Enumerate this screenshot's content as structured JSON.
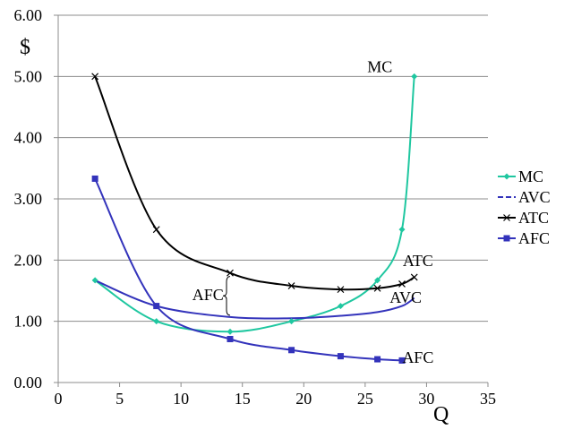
{
  "chart_data": {
    "type": "line",
    "title": "",
    "xlabel": "Q",
    "ylabel": "$",
    "xlim": [
      0,
      35
    ],
    "ylim": [
      0,
      6
    ],
    "xticks": [
      0,
      5,
      10,
      15,
      20,
      25,
      30,
      35
    ],
    "yticks": [
      0,
      1,
      2,
      3,
      4,
      5,
      6
    ],
    "xtick_labels": [
      "0",
      "5",
      "10",
      "15",
      "20",
      "25",
      "30",
      "35"
    ],
    "ytick_labels": [
      "0.00",
      "1.00",
      "2.00",
      "3.00",
      "4.00",
      "5.00",
      "6.00"
    ],
    "grid": "horizontal",
    "legend_position": "right",
    "series": [
      {
        "name": "MC",
        "color": "#1fc7a0",
        "marker": "diamond",
        "x": [
          3,
          8,
          14,
          19,
          23,
          26,
          28,
          29
        ],
        "y": [
          1.67,
          1.0,
          0.83,
          1.0,
          1.25,
          1.67,
          2.5,
          5.0
        ]
      },
      {
        "name": "AVC",
        "color": "#3333bb",
        "marker": "none",
        "x": [
          3,
          8,
          14,
          19,
          23,
          26,
          28,
          29
        ],
        "y": [
          1.67,
          1.25,
          1.07,
          1.05,
          1.09,
          1.15,
          1.25,
          1.38
        ]
      },
      {
        "name": "ATC",
        "color": "#000000",
        "marker": "x",
        "x": [
          3,
          8,
          14,
          19,
          23,
          26,
          28,
          29
        ],
        "y": [
          5.0,
          2.5,
          1.79,
          1.58,
          1.52,
          1.54,
          1.61,
          1.72
        ]
      },
      {
        "name": "AFC",
        "color": "#3333bb",
        "marker": "square",
        "x": [
          3,
          8,
          14,
          19,
          23,
          26,
          28
        ],
        "y": [
          3.33,
          1.25,
          0.71,
          0.53,
          0.43,
          0.38,
          0.36
        ]
      }
    ],
    "annotations": [
      {
        "text": "MC",
        "x": 26.2,
        "y": 5.07
      },
      {
        "text": "ATC",
        "x": 29.3,
        "y": 1.9
      },
      {
        "text": "AVC",
        "x": 28.3,
        "y": 1.3
      },
      {
        "text": "AFC",
        "x": 29.3,
        "y": 0.32
      },
      {
        "text": "AFC",
        "x": 12.2,
        "y": 1.35
      }
    ],
    "afc_bracket": {
      "x": 14,
      "y_low": 1.07,
      "y_high": 1.79
    }
  }
}
